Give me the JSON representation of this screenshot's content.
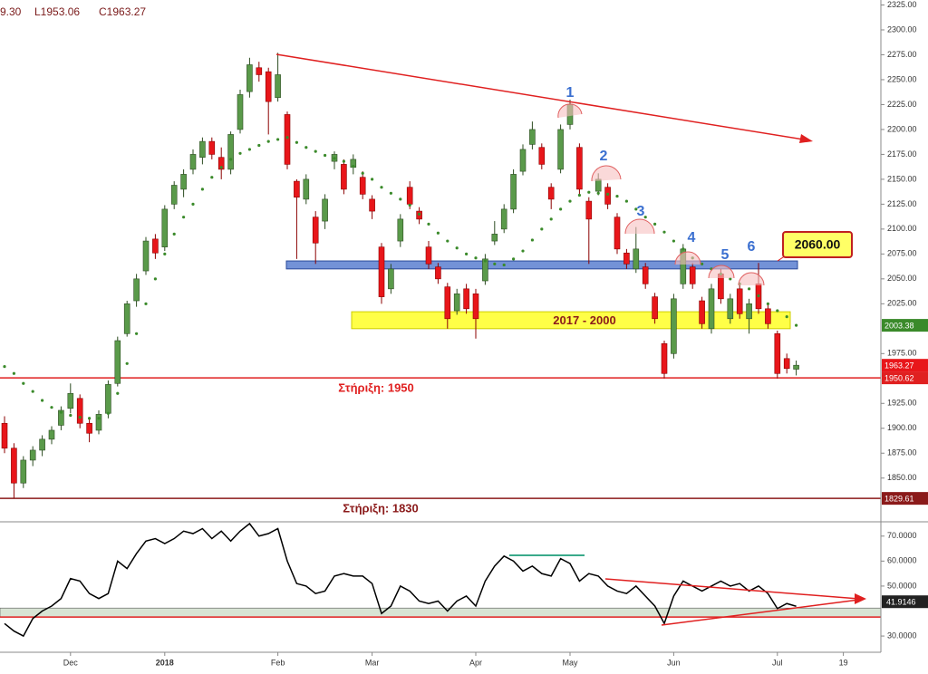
{
  "chart_data": [
    {
      "type": "candlestick",
      "header": [
        "9.30",
        "L1953.06",
        "C1963.27"
      ],
      "categories": [
        null,
        null,
        null,
        null,
        null,
        null,
        null,
        "Dec",
        null,
        null,
        null,
        null,
        null,
        null,
        null,
        null,
        null,
        "2018",
        null,
        null,
        null,
        null,
        null,
        null,
        null,
        null,
        null,
        null,
        null,
        "Feb",
        null,
        null,
        null,
        null,
        null,
        null,
        null,
        null,
        null,
        "Mar",
        null,
        null,
        null,
        null,
        null,
        null,
        null,
        null,
        null,
        null,
        "Apr",
        null,
        null,
        null,
        null,
        null,
        null,
        null,
        null,
        null,
        "May",
        null,
        null,
        null,
        null,
        null,
        null,
        null,
        null,
        null,
        null,
        "Jun",
        null,
        null,
        null,
        null,
        null,
        null,
        null,
        null,
        null,
        null,
        "Jul",
        null,
        null,
        null,
        null,
        null,
        null,
        "19",
        null,
        null,
        null
      ],
      "values": [
        [
          1905,
          1912,
          1875,
          1880
        ],
        [
          1880,
          1885,
          1830,
          1845
        ],
        [
          1845,
          1872,
          1840,
          1868
        ],
        [
          1868,
          1882,
          1862,
          1878
        ],
        [
          1878,
          1893,
          1872,
          1889
        ],
        [
          1889,
          1902,
          1884,
          1898
        ],
        [
          1903,
          1922,
          1898,
          1918
        ],
        [
          1920,
          1945,
          1915,
          1935
        ],
        [
          1930,
          1934,
          1900,
          1905
        ],
        [
          1905,
          1910,
          1886,
          1895
        ],
        [
          1898,
          1918,
          1894,
          1914
        ],
        [
          1915,
          1948,
          1910,
          1944
        ],
        [
          1945,
          1992,
          1942,
          1988
        ],
        [
          1995,
          2028,
          1992,
          2025
        ],
        [
          2028,
          2055,
          2022,
          2050
        ],
        [
          2058,
          2092,
          2054,
          2088
        ],
        [
          2090,
          2095,
          2070,
          2076
        ],
        [
          2082,
          2124,
          2078,
          2120
        ],
        [
          2125,
          2148,
          2120,
          2144
        ],
        [
          2140,
          2160,
          2132,
          2155
        ],
        [
          2160,
          2180,
          2155,
          2175
        ],
        [
          2172,
          2192,
          2165,
          2188
        ],
        [
          2188,
          2192,
          2170,
          2175
        ],
        [
          2172,
          2182,
          2150,
          2160
        ],
        [
          2160,
          2198,
          2155,
          2195
        ],
        [
          2200,
          2240,
          2196,
          2235
        ],
        [
          2238,
          2272,
          2232,
          2265
        ],
        [
          2262,
          2268,
          2248,
          2255
        ],
        [
          2258,
          2262,
          2195,
          2228
        ],
        [
          2232,
          2277,
          2228,
          2255
        ],
        [
          2215,
          2218,
          2160,
          2165
        ],
        [
          2148,
          2150,
          2070,
          2132
        ],
        [
          2130,
          2155,
          2125,
          2150
        ],
        [
          2112,
          2118,
          2065,
          2086
        ],
        [
          2108,
          2135,
          2100,
          2130
        ],
        [
          2168,
          2178,
          2160,
          2175
        ],
        [
          2165,
          2170,
          2135,
          2140
        ],
        [
          2162,
          2175,
          2155,
          2170
        ],
        [
          2152,
          2158,
          2130,
          2135
        ],
        [
          2130,
          2134,
          2110,
          2118
        ],
        [
          2082,
          2086,
          2025,
          2032
        ],
        [
          2040,
          2065,
          2035,
          2060
        ],
        [
          2088,
          2115,
          2082,
          2110
        ],
        [
          2142,
          2148,
          2120,
          2125
        ],
        [
          2118,
          2122,
          2105,
          2110
        ],
        [
          2082,
          2088,
          2060,
          2065
        ],
        [
          2062,
          2066,
          2045,
          2050
        ],
        [
          2042,
          2046,
          2000,
          2010
        ],
        [
          2018,
          2040,
          2014,
          2035
        ],
        [
          2040,
          2045,
          2015,
          2020
        ],
        [
          2035,
          2040,
          1990,
          2010
        ],
        [
          2048,
          2075,
          2044,
          2070
        ],
        [
          2088,
          2108,
          2084,
          2095
        ],
        [
          2100,
          2125,
          2096,
          2120
        ],
        [
          2120,
          2160,
          2116,
          2155
        ],
        [
          2158,
          2185,
          2154,
          2180
        ],
        [
          2185,
          2208,
          2180,
          2200
        ],
        [
          2182,
          2186,
          2160,
          2165
        ],
        [
          2142,
          2146,
          2120,
          2130
        ],
        [
          2160,
          2205,
          2156,
          2200
        ],
        [
          2205,
          2230,
          2200,
          2225
        ],
        [
          2182,
          2186,
          2135,
          2140
        ],
        [
          2128,
          2132,
          2065,
          2110
        ],
        [
          2138,
          2156,
          2134,
          2150
        ],
        [
          2142,
          2146,
          2120,
          2125
        ],
        [
          2112,
          2116,
          2075,
          2080
        ],
        [
          2076,
          2080,
          2060,
          2065
        ],
        [
          2060,
          2102,
          2056,
          2080
        ],
        [
          2062,
          2066,
          2040,
          2045
        ],
        [
          2032,
          2036,
          2005,
          2010
        ],
        [
          1985,
          1988,
          1950,
          1955
        ],
        [
          1975,
          2035,
          1970,
          2030
        ],
        [
          2045,
          2085,
          2040,
          2080
        ],
        [
          2062,
          2066,
          2040,
          2045
        ],
        [
          2028,
          2032,
          2000,
          2005
        ],
        [
          2000,
          2045,
          1995,
          2040
        ],
        [
          2055,
          2060,
          2025,
          2030
        ],
        [
          2010,
          2035,
          2005,
          2030
        ],
        [
          2040,
          2044,
          2010,
          2015
        ],
        [
          2010,
          2030,
          1995,
          2025
        ],
        [
          2045,
          2066,
          2015,
          2020
        ],
        [
          2020,
          2024,
          2000,
          2005
        ],
        [
          1995,
          1998,
          1950,
          1955
        ],
        [
          1970,
          1975,
          1955,
          1960
        ],
        [
          1959.3,
          1968,
          1953.06,
          1963.27
        ],
        null,
        null,
        null,
        null,
        null,
        null,
        null,
        null
      ],
      "up_color": "#5a9a4a",
      "down_color": "#e8161a",
      "dots": {
        "color": "#3a8a2a",
        "values": [
          1962,
          1955,
          1945,
          1937,
          1928,
          1921,
          1916,
          1913,
          1911,
          1910,
          1910,
          1915,
          1935,
          1965,
          1995,
          2025,
          2050,
          2075,
          2095,
          2112,
          2125,
          2140,
          2152,
          2162,
          2170,
          2176,
          2180,
          2184,
          2188,
          2190,
          2192,
          2187,
          2182,
          2178,
          2174,
          2171,
          2168,
          2163,
          2156,
          2150,
          2142,
          2136,
          2130,
          2124,
          2115,
          2105,
          2096,
          2088,
          2081,
          2075,
          2071,
          2068,
          2065,
          2064,
          2070,
          2078,
          2089,
          2100,
          2110,
          2120,
          2128,
          2134,
          2137,
          2136,
          2135,
          2133,
          2128,
          2120,
          2112,
          2105,
          2097,
          2088,
          2080,
          2071,
          2065,
          2060,
          2055,
          2050,
          2045,
          2040,
          2033,
          2025,
          2018,
          2012,
          2003.38,
          null,
          null,
          null,
          null,
          null,
          null,
          null,
          null
        ]
      },
      "ylim": [
        1807,
        2330
      ],
      "yticks": [
        {
          "value": 2325,
          "label": "2325.00"
        },
        {
          "value": 2300,
          "label": "2300.00"
        },
        {
          "value": 2275,
          "label": "2275.00"
        },
        {
          "value": 2250,
          "label": "2250.00"
        },
        {
          "value": 2225,
          "label": "2225.00"
        },
        {
          "value": 2200,
          "label": "2200.00"
        },
        {
          "value": 2175,
          "label": "2175.00"
        },
        {
          "value": 2150,
          "label": "2150.00"
        },
        {
          "value": 2125,
          "label": "2125.00"
        },
        {
          "value": 2100,
          "label": "2100.00"
        },
        {
          "value": 2075,
          "label": "2075.00"
        },
        {
          "value": 2050,
          "label": "2050.00"
        },
        {
          "value": 2025,
          "label": "2025.00"
        },
        {
          "value": 1975,
          "label": "1975.00"
        },
        {
          "value": 1925,
          "label": "1925.00"
        },
        {
          "value": 1900,
          "label": "1900.00"
        },
        {
          "value": 1875,
          "label": "1875.00"
        },
        {
          "value": 1850,
          "label": "1850.00"
        }
      ],
      "lines": [
        {
          "label": "Στήριξη: 1950",
          "value": 1950.62,
          "color": "#e02020"
        },
        {
          "label": "Στήριξη: 1830",
          "value": 1829.61,
          "color": "#8b1a1a"
        }
      ],
      "bands": [
        {
          "label": "2017 - 2000",
          "range": [
            2000,
            2017
          ],
          "color": "#ffff33"
        },
        {
          "label": "2060.00",
          "range": [
            2060,
            2068
          ],
          "color": "#5b7fd0"
        }
      ],
      "annotations": [
        "1",
        "2",
        "3",
        "4",
        "5",
        "6"
      ]
    },
    {
      "type": "line",
      "values": [
        35,
        32,
        30,
        37,
        40,
        42,
        45,
        53,
        52,
        47,
        45,
        47,
        60,
        57,
        63,
        68,
        69,
        67,
        69,
        72,
        71,
        73,
        69,
        72,
        68,
        72,
        75,
        70,
        71,
        73,
        60,
        51,
        50,
        47,
        48,
        54,
        55,
        54,
        54,
        51,
        39,
        42,
        50,
        48,
        44,
        43,
        44,
        40,
        44,
        46,
        42,
        52,
        58,
        62,
        60,
        56,
        58,
        55,
        54,
        61,
        59,
        52,
        55,
        54,
        50,
        48,
        47,
        50,
        46,
        42,
        35,
        46,
        52,
        50,
        48,
        50,
        52,
        50,
        51,
        48,
        50,
        47,
        41,
        43,
        41.9146,
        null,
        null,
        null,
        null,
        null,
        null,
        null,
        null
      ],
      "color": "#000000",
      "ylim": [
        23.5,
        75
      ],
      "yticks": [
        {
          "value": 70,
          "label": "70.0000"
        },
        {
          "value": 60,
          "label": "60.0000"
        },
        {
          "value": 50,
          "label": "50.0000"
        },
        {
          "value": 30,
          "label": "30.0000"
        }
      ],
      "band": {
        "range": [
          37.6,
          41.2
        ],
        "color": "#d8e4d4"
      },
      "line": {
        "value": 37.6,
        "color": "#e02020"
      }
    }
  ]
}
